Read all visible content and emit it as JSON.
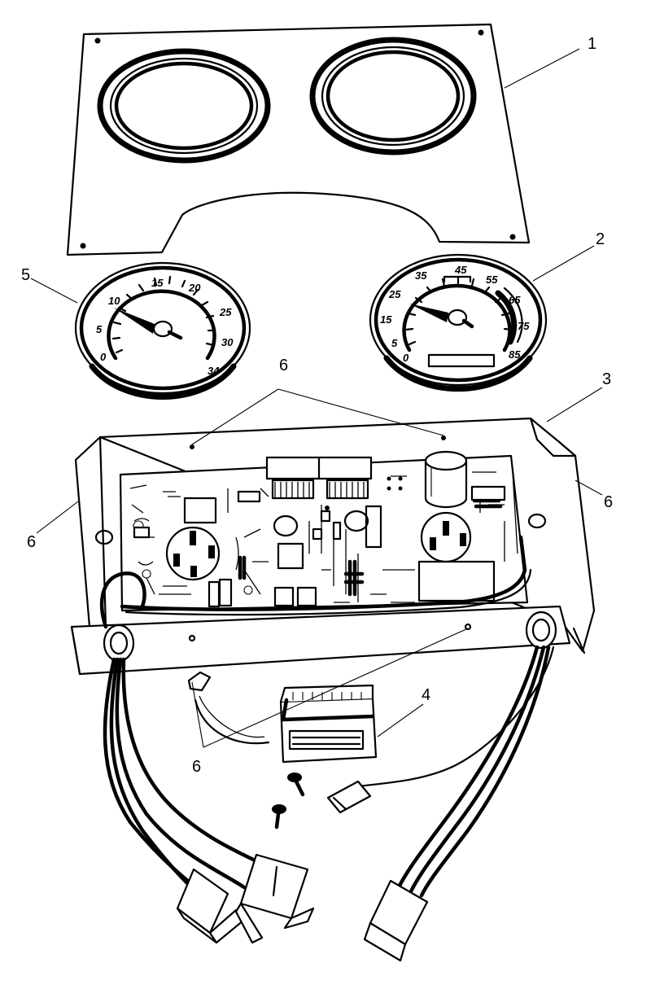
{
  "callouts": {
    "c1": "1",
    "c2": "2",
    "c3": "3",
    "c4": "4",
    "c5": "5",
    "c6_top": "6",
    "c6_left": "6",
    "c6_right": "6",
    "c6_bottom": "6"
  },
  "left_gauge": {
    "scale_labels": [
      "0",
      "5",
      "10",
      "15",
      "20",
      "25",
      "30",
      "34"
    ]
  },
  "right_gauge": {
    "scale_labels": [
      "0",
      "5",
      "15",
      "25",
      "35",
      "45",
      "55",
      "65",
      "75",
      "85"
    ]
  }
}
